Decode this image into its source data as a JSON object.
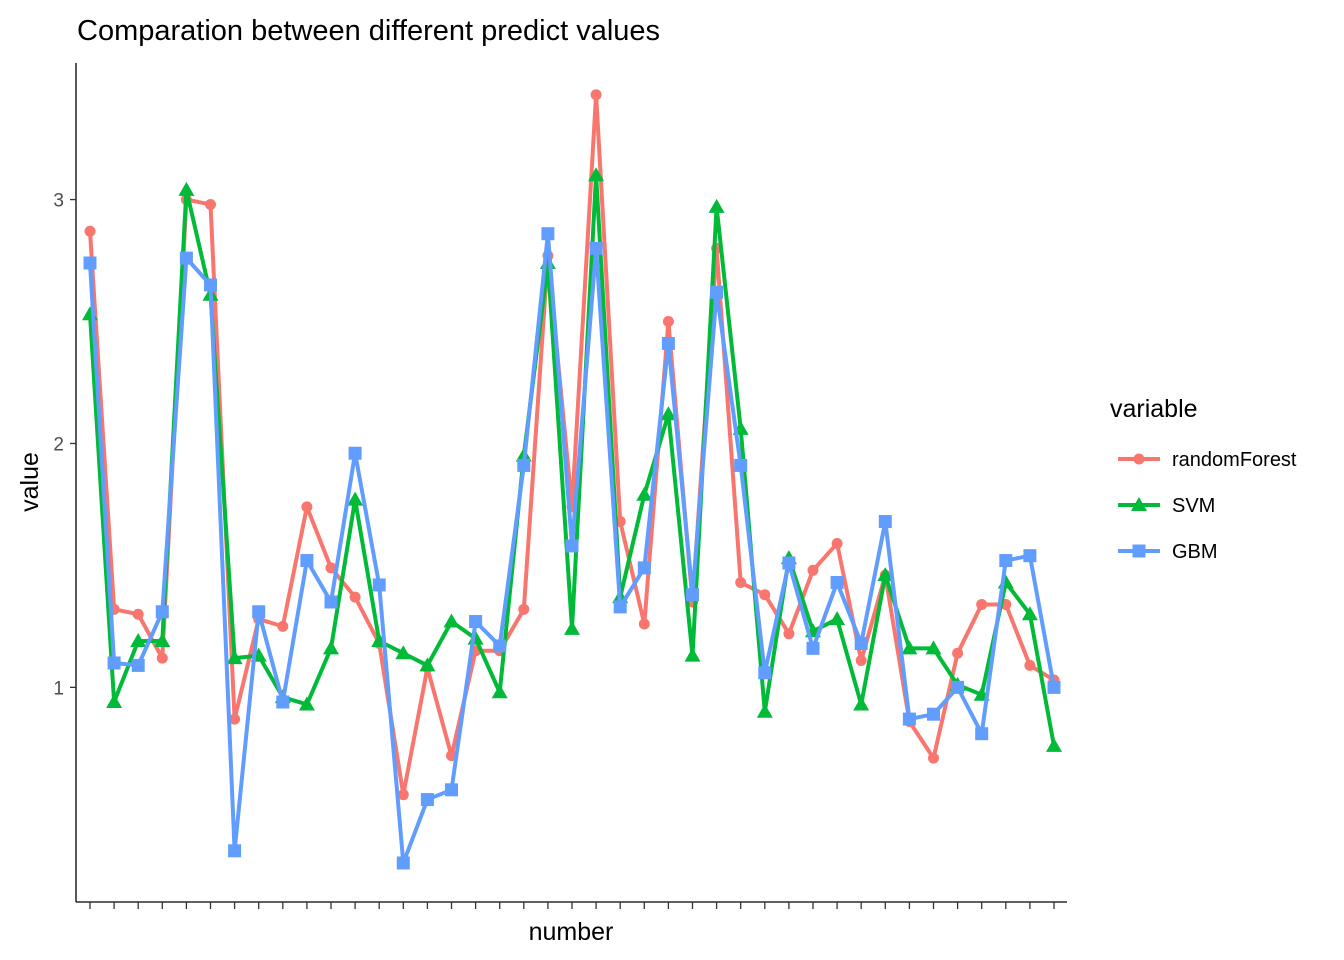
{
  "chart_data": {
    "type": "line",
    "title": "Comparation between different predict values",
    "xlabel": "number",
    "ylabel": "value",
    "ylim": [
      0.12,
      3.56
    ],
    "y_ticks": [
      1,
      2,
      3
    ],
    "x_tick_labels_shown": false,
    "grid": false,
    "legend": {
      "title": "variable",
      "position": "right"
    },
    "x": [
      1,
      2,
      3,
      4,
      5,
      6,
      7,
      8,
      9,
      10,
      11,
      12,
      13,
      14,
      15,
      16,
      17,
      18,
      19,
      20,
      21,
      22,
      23,
      24,
      25,
      26,
      27,
      28,
      29,
      30,
      31,
      32,
      33,
      34,
      35,
      36,
      37,
      38,
      39,
      40,
      41
    ],
    "series": [
      {
        "name": "randomForest",
        "color": "#F8766D",
        "marker": "circle",
        "values": [
          2.87,
          1.32,
          1.3,
          1.12,
          3.0,
          2.98,
          0.87,
          1.28,
          1.25,
          1.74,
          1.49,
          1.37,
          1.18,
          0.56,
          1.08,
          0.72,
          1.15,
          1.15,
          1.32,
          2.77,
          1.74,
          3.43,
          1.68,
          1.26,
          2.5,
          1.35,
          2.8,
          1.43,
          1.38,
          1.22,
          1.48,
          1.59,
          1.11,
          1.46,
          0.86,
          0.71,
          1.14,
          1.34,
          1.34,
          1.09,
          1.03
        ]
      },
      {
        "name": "SVM",
        "color": "#00BA38",
        "marker": "triangle",
        "values": [
          2.53,
          0.94,
          1.19,
          1.19,
          3.04,
          2.61,
          1.12,
          1.13,
          0.96,
          0.93,
          1.16,
          1.77,
          1.19,
          1.14,
          1.09,
          1.27,
          1.2,
          0.98,
          1.95,
          2.74,
          1.24,
          3.1,
          1.37,
          1.79,
          2.12,
          1.13,
          2.97,
          2.06,
          0.9,
          1.53,
          1.23,
          1.28,
          0.93,
          1.46,
          1.16,
          1.16,
          1.01,
          0.97,
          1.43,
          1.3,
          0.76
        ]
      },
      {
        "name": "GBM",
        "color": "#619CFF",
        "marker": "square",
        "values": [
          2.74,
          1.1,
          1.09,
          1.31,
          2.76,
          2.65,
          0.33,
          1.31,
          0.94,
          1.52,
          1.35,
          1.96,
          1.42,
          0.28,
          0.54,
          0.58,
          1.27,
          1.17,
          1.91,
          2.86,
          1.58,
          2.8,
          1.33,
          1.49,
          2.41,
          1.38,
          2.62,
          1.91,
          1.06,
          1.51,
          1.16,
          1.43,
          1.18,
          1.68,
          0.87,
          0.89,
          1.0,
          0.81,
          1.52,
          1.54,
          1.0
        ]
      }
    ]
  }
}
